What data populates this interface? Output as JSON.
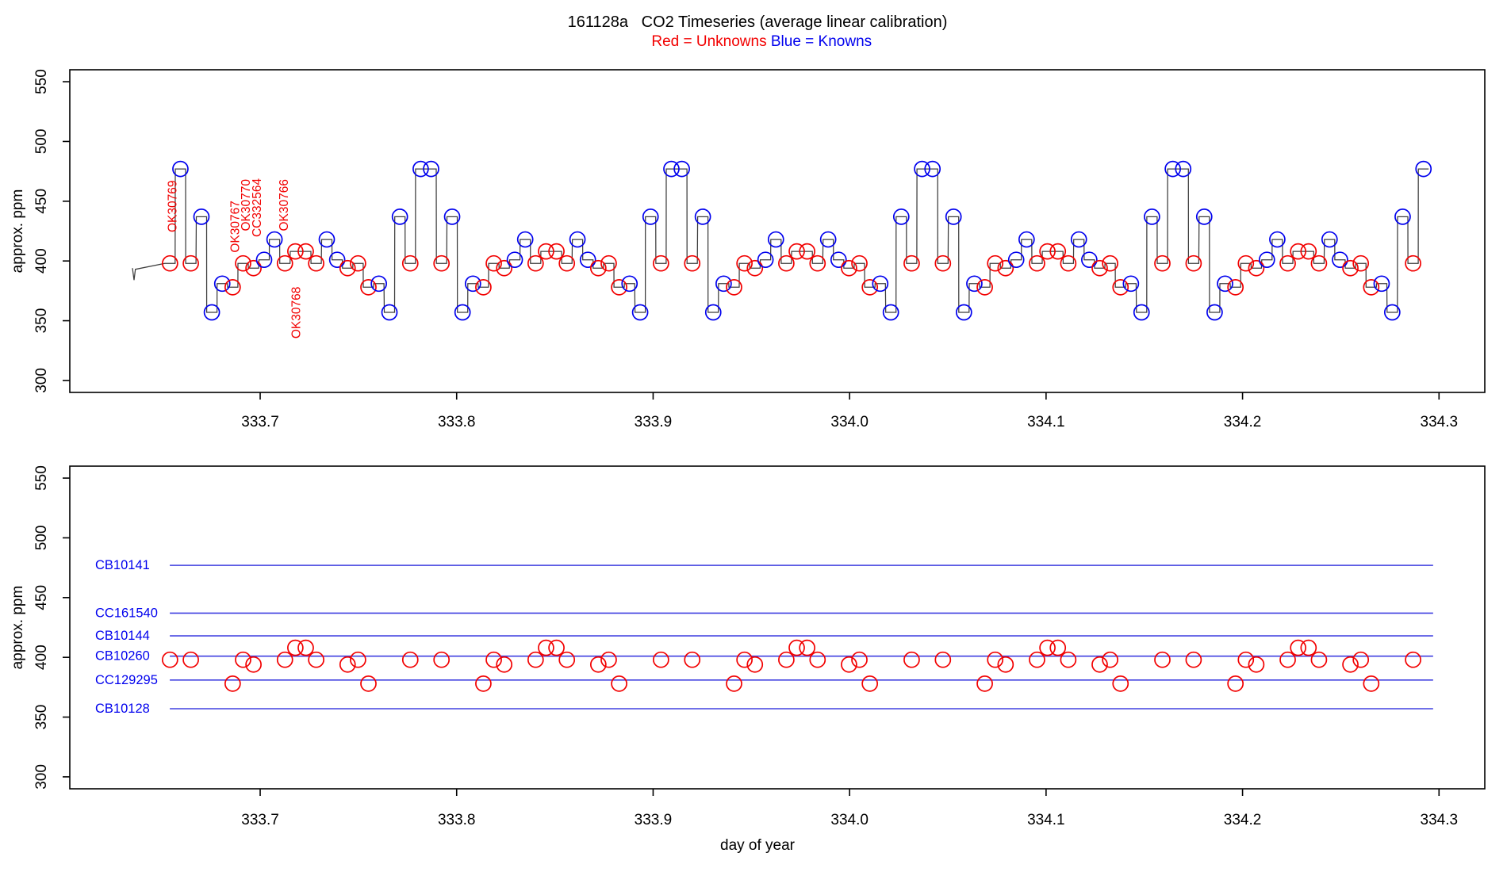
{
  "chart_data": {
    "type": "line",
    "title": "161128a   CO2 Timeseries (average linear calibration)",
    "legend": {
      "red": "Red = Unknowns",
      "blue": "Blue = Knowns"
    },
    "colors": {
      "unknown": "#f20000",
      "known": "#0000ee",
      "known_line": "#4040e0",
      "trace": "#3c3c3c",
      "axis": "#000000"
    },
    "axes": {
      "xlabel": "day of year",
      "ylabel": "approx. ppm",
      "x_ticks": [
        333.7,
        333.8,
        333.9,
        334.0,
        334.1,
        334.2,
        334.3
      ],
      "y_ticks": [
        300,
        350,
        400,
        450,
        500,
        550
      ],
      "xlim": [
        333.6031,
        334.3233
      ],
      "ylim": [
        290,
        560
      ]
    },
    "lead_in": [
      [
        333.635,
        394
      ],
      [
        333.6358,
        384
      ],
      [
        333.6365,
        393
      ]
    ],
    "series": [
      [
        333.6541,
        398,
        "r"
      ],
      [
        333.6594,
        477,
        "b"
      ],
      [
        333.6647,
        398,
        "r"
      ],
      [
        333.6701,
        437,
        "b"
      ],
      [
        333.6754,
        357,
        "b"
      ],
      [
        333.6807,
        381,
        "b"
      ],
      [
        333.686,
        378,
        "r"
      ],
      [
        333.6913,
        398,
        "r"
      ],
      [
        333.6966,
        394,
        "r"
      ],
      [
        333.702,
        401,
        "b"
      ],
      [
        333.7073,
        418,
        "b"
      ],
      [
        333.7126,
        398,
        "r"
      ],
      [
        333.7179,
        408,
        "r"
      ],
      [
        333.7232,
        408,
        "r"
      ],
      [
        333.7285,
        398,
        "r"
      ],
      [
        333.7339,
        418,
        "b"
      ],
      [
        333.7392,
        401,
        "b"
      ],
      [
        333.7445,
        394,
        "r"
      ],
      [
        333.7498,
        398,
        "r"
      ],
      [
        333.7551,
        378,
        "r"
      ],
      [
        333.7604,
        381,
        "b"
      ],
      [
        333.7658,
        357,
        "b"
      ],
      [
        333.7711,
        437,
        "b"
      ],
      [
        333.7764,
        398,
        "r"
      ],
      [
        333.7817,
        477,
        "b"
      ],
      [
        333.787,
        477,
        "b"
      ],
      [
        333.7923,
        398,
        "r"
      ],
      [
        333.7977,
        437,
        "b"
      ],
      [
        333.803,
        357,
        "b"
      ],
      [
        333.8083,
        381,
        "b"
      ],
      [
        333.8136,
        378,
        "r"
      ],
      [
        333.8189,
        398,
        "r"
      ],
      [
        333.8242,
        394,
        "r"
      ],
      [
        333.8296,
        401,
        "b"
      ],
      [
        333.8349,
        418,
        "b"
      ],
      [
        333.8402,
        398,
        "r"
      ],
      [
        333.8455,
        408,
        "r"
      ],
      [
        333.8508,
        408,
        "r"
      ],
      [
        333.8561,
        398,
        "r"
      ],
      [
        333.8615,
        418,
        "b"
      ],
      [
        333.8668,
        401,
        "b"
      ],
      [
        333.8721,
        394,
        "r"
      ],
      [
        333.8774,
        398,
        "r"
      ],
      [
        333.8827,
        378,
        "r"
      ],
      [
        333.888,
        381,
        "b"
      ],
      [
        333.8934,
        357,
        "b"
      ],
      [
        333.8987,
        437,
        "b"
      ],
      [
        333.904,
        398,
        "r"
      ],
      [
        333.9093,
        477,
        "b"
      ],
      [
        333.9146,
        477,
        "b"
      ],
      [
        333.9199,
        398,
        "r"
      ],
      [
        333.9253,
        437,
        "b"
      ],
      [
        333.9306,
        357,
        "b"
      ],
      [
        333.9359,
        381,
        "b"
      ],
      [
        333.9412,
        378,
        "r"
      ],
      [
        333.9465,
        398,
        "r"
      ],
      [
        333.9518,
        394,
        "r"
      ],
      [
        333.9572,
        401,
        "b"
      ],
      [
        333.9625,
        418,
        "b"
      ],
      [
        333.9678,
        398,
        "r"
      ],
      [
        333.9731,
        408,
        "r"
      ],
      [
        333.9784,
        408,
        "r"
      ],
      [
        333.9837,
        398,
        "r"
      ],
      [
        333.9891,
        418,
        "b"
      ],
      [
        333.9944,
        401,
        "b"
      ],
      [
        333.9997,
        394,
        "r"
      ],
      [
        334.005,
        398,
        "r"
      ],
      [
        334.0103,
        378,
        "r"
      ],
      [
        334.0156,
        381,
        "b"
      ],
      [
        334.021,
        357,
        "b"
      ],
      [
        334.0263,
        437,
        "b"
      ],
      [
        334.0316,
        398,
        "r"
      ],
      [
        334.0369,
        477,
        "b"
      ],
      [
        334.0422,
        477,
        "b"
      ],
      [
        334.0475,
        398,
        "r"
      ],
      [
        334.0529,
        437,
        "b"
      ],
      [
        334.0582,
        357,
        "b"
      ],
      [
        334.0635,
        381,
        "b"
      ],
      [
        334.0688,
        378,
        "r"
      ],
      [
        334.0741,
        398,
        "r"
      ],
      [
        334.0794,
        394,
        "r"
      ],
      [
        334.0848,
        401,
        "b"
      ],
      [
        334.0901,
        418,
        "b"
      ],
      [
        334.0954,
        398,
        "r"
      ],
      [
        334.1007,
        408,
        "r"
      ],
      [
        334.106,
        408,
        "r"
      ],
      [
        334.1113,
        398,
        "r"
      ],
      [
        334.1167,
        418,
        "b"
      ],
      [
        334.122,
        401,
        "b"
      ],
      [
        334.1273,
        394,
        "r"
      ],
      [
        334.1326,
        398,
        "r"
      ],
      [
        334.1379,
        378,
        "r"
      ],
      [
        334.1432,
        381,
        "b"
      ],
      [
        334.1486,
        357,
        "b"
      ],
      [
        334.1539,
        437,
        "b"
      ],
      [
        334.1592,
        398,
        "r"
      ],
      [
        334.1645,
        477,
        "b"
      ],
      [
        334.1698,
        477,
        "b"
      ],
      [
        334.1751,
        398,
        "r"
      ],
      [
        334.1805,
        437,
        "b"
      ],
      [
        334.1858,
        357,
        "b"
      ],
      [
        334.1911,
        381,
        "b"
      ],
      [
        334.1964,
        378,
        "r"
      ],
      [
        334.2017,
        398,
        "r"
      ],
      [
        334.207,
        394,
        "r"
      ],
      [
        334.2124,
        401,
        "b"
      ],
      [
        334.2177,
        418,
        "b"
      ],
      [
        334.223,
        398,
        "r"
      ],
      [
        334.2283,
        408,
        "r"
      ],
      [
        334.2336,
        408,
        "r"
      ],
      [
        334.2389,
        398,
        "r"
      ],
      [
        334.2443,
        418,
        "b"
      ],
      [
        334.2496,
        401,
        "b"
      ],
      [
        334.2549,
        394,
        "r"
      ],
      [
        334.2602,
        398,
        "r"
      ],
      [
        334.2655,
        378,
        "r"
      ],
      [
        334.2708,
        381,
        "b"
      ],
      [
        334.2762,
        357,
        "b"
      ],
      [
        334.2815,
        437,
        "b"
      ],
      [
        334.2868,
        398,
        "r"
      ],
      [
        334.2921,
        477,
        "b"
      ]
    ],
    "unknown_labels": [
      {
        "text": "OK30769",
        "day": 333.6555,
        "ppm": 424
      },
      {
        "text": "OK30767",
        "day": 333.6875,
        "ppm": 407
      },
      {
        "text": "OK30770",
        "day": 333.693,
        "ppm": 425
      },
      {
        "text": "CC332564",
        "day": 333.6985,
        "ppm": 420
      },
      {
        "text": "OK30766",
        "day": 333.7123,
        "ppm": 425
      },
      {
        "text": "OK30768",
        "day": 333.7186,
        "ppm": 335
      }
    ],
    "known_lines": [
      {
        "label": "CB10141",
        "ppm": 477
      },
      {
        "label": "CC161540",
        "ppm": 437
      },
      {
        "label": "CB10144",
        "ppm": 418
      },
      {
        "label": "CB10260",
        "ppm": 401
      },
      {
        "label": "CC129295",
        "ppm": 381
      },
      {
        "label": "CB10128",
        "ppm": 357
      }
    ],
    "known_line_day_range": [
      333.654,
      334.297
    ]
  }
}
